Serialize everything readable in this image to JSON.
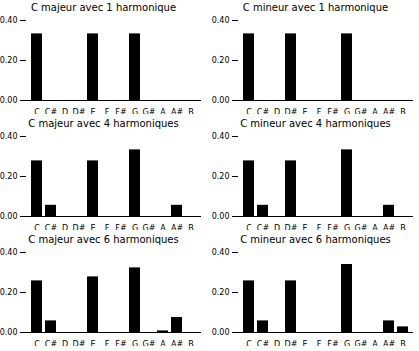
{
  "chart_data": [
    {
      "type": "bar",
      "title": "C majeur avec 1 harmonique",
      "categories": [
        "C",
        "C#",
        "D",
        "D#",
        "E",
        "F",
        "F#",
        "G",
        "G#",
        "A",
        "A#",
        "B"
      ],
      "values": [
        0.333,
        0,
        0,
        0,
        0.333,
        0,
        0,
        0.333,
        0,
        0,
        0,
        0
      ],
      "color": "#000000",
      "ylim": [
        0,
        0.4
      ],
      "yticks": [
        0,
        0.2,
        0.4
      ]
    },
    {
      "type": "bar",
      "title": "C mineur avec 1 harmonique",
      "categories": [
        "C",
        "C#",
        "D",
        "D#",
        "E",
        "F",
        "F#",
        "G",
        "G#",
        "A",
        "A#",
        "B"
      ],
      "values": [
        0.333,
        0,
        0,
        0.333,
        0,
        0,
        0,
        0.333,
        0,
        0,
        0,
        0
      ],
      "color": "#000000",
      "ylim": [
        0,
        0.4
      ],
      "yticks": [
        0,
        0.2,
        0.4
      ]
    },
    {
      "type": "bar",
      "title": "C majeur avec 4 harmoniques",
      "categories": [
        "C",
        "C#",
        "D",
        "D#",
        "E",
        "F",
        "F#",
        "G",
        "G#",
        "A",
        "A#",
        "B"
      ],
      "values": [
        0.278,
        0.056,
        0,
        0,
        0.278,
        0,
        0,
        0.333,
        0,
        0,
        0.056,
        0
      ],
      "color": "#000000",
      "ylim": [
        0,
        0.4
      ],
      "yticks": [
        0,
        0.2,
        0.4
      ]
    },
    {
      "type": "bar",
      "title": "C mineur avec 4 harmoniques",
      "categories": [
        "C",
        "C#",
        "D",
        "D#",
        "E",
        "F",
        "F#",
        "G",
        "G#",
        "A",
        "A#",
        "B"
      ],
      "values": [
        0.278,
        0.056,
        0,
        0.278,
        0,
        0,
        0,
        0.333,
        0,
        0,
        0.056,
        0
      ],
      "color": "#000000",
      "ylim": [
        0,
        0.4
      ],
      "yticks": [
        0,
        0.2,
        0.4
      ]
    },
    {
      "type": "bar",
      "title": "C majeur avec 6 harmoniques",
      "categories": [
        "C",
        "C#",
        "D",
        "D#",
        "E",
        "F",
        "F#",
        "G",
        "G#",
        "A",
        "A#",
        "B"
      ],
      "values": [
        0.258,
        0.058,
        0,
        0,
        0.278,
        0,
        0,
        0.323,
        0,
        0.008,
        0.075,
        0
      ],
      "color": "#000000",
      "ylim": [
        0,
        0.4
      ],
      "yticks": [
        0,
        0.2,
        0.4
      ]
    },
    {
      "type": "bar",
      "title": "C mineur avec 6 harmoniques",
      "categories": [
        "C",
        "C#",
        "D",
        "D#",
        "E",
        "F",
        "F#",
        "G",
        "G#",
        "A",
        "A#",
        "B"
      ],
      "values": [
        0.258,
        0.058,
        0,
        0.258,
        0,
        0,
        0,
        0.34,
        0,
        0,
        0.058,
        0.028
      ],
      "color": "#000000",
      "ylim": [
        0,
        0.4
      ],
      "yticks": [
        0,
        0.2,
        0.4
      ]
    }
  ]
}
